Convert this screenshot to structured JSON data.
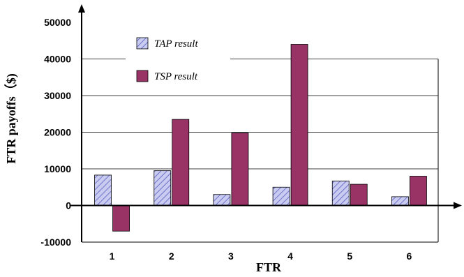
{
  "chart_data": {
    "type": "bar",
    "title": "",
    "xlabel": "FTR",
    "ylabel": "FTR  payoffs（$)",
    "categories": [
      "1",
      "2",
      "3",
      "4",
      "5",
      "6"
    ],
    "series": [
      {
        "name": "TAP result",
        "values": [
          8300,
          9500,
          3000,
          5000,
          6700,
          2400
        ]
      },
      {
        "name": "TSP result",
        "values": [
          -7000,
          23500,
          19800,
          44000,
          5800,
          8000
        ]
      }
    ],
    "ylim": [
      -10000,
      50000
    ],
    "yticks": [
      "50000",
      "40000",
      "30000",
      "20000",
      "10000",
      "0",
      "-10000"
    ],
    "grid": true,
    "legend": "top-center",
    "colors": {
      "tap_fill": "#c9cbf0",
      "tap_hatch": "#5a5ec0",
      "tsp_fill": "#993366",
      "grid": "#000000"
    }
  }
}
